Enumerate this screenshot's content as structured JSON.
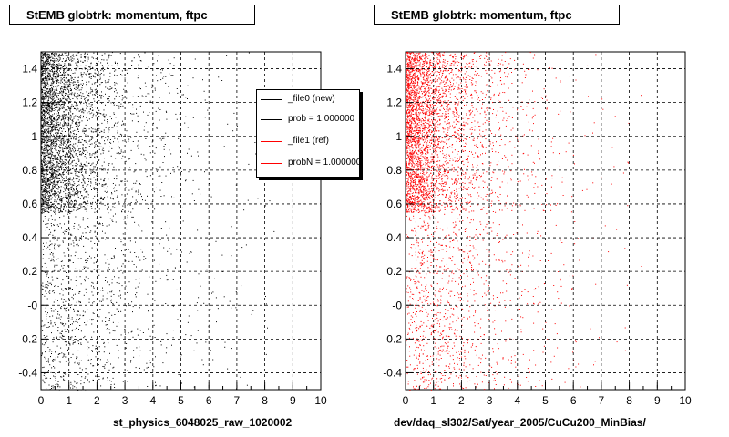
{
  "chart_data": [
    {
      "type": "scatter",
      "title": "StEMB globtrk: momentum, ftpc",
      "xlabel": "st_physics_6048025_raw_1020002",
      "ylabel": "",
      "xlim": [
        0,
        10
      ],
      "ylim": [
        -0.5,
        1.5
      ],
      "x_ticks": [
        "0",
        "1",
        "2",
        "3",
        "4",
        "5",
        "6",
        "7",
        "8",
        "9",
        "10"
      ],
      "y_ticks": [
        "-0.4",
        "-0.2",
        "-0",
        "0.2",
        "0.4",
        "0.6",
        "0.8",
        "1",
        "1.2",
        "1.4"
      ],
      "grid": true,
      "marker_color": "#000000",
      "legend": {
        "placement": "top-right",
        "entries": [
          {
            "label": "_file0 (new)",
            "color": "#000000"
          },
          {
            "label": "prob = 1.000000",
            "color": "#000000"
          },
          {
            "label": "_file1 (ref)",
            "color": "#ff0000"
          },
          {
            "label": "probN = 1.000000",
            "color": "#ff0000"
          }
        ]
      }
    },
    {
      "type": "scatter",
      "title": "StEMB globtrk: momentum, ftpc",
      "xlabel": "dev/daq_sl302/Sat/year_2005/CuCu200_MinBias/",
      "ylabel": "",
      "xlim": [
        0,
        10
      ],
      "ylim": [
        -0.5,
        1.5
      ],
      "x_ticks": [
        "0",
        "1",
        "2",
        "3",
        "4",
        "5",
        "6",
        "7",
        "8",
        "9",
        "10"
      ],
      "y_ticks": [
        "-0.4",
        "-0.2",
        "-0",
        "0.2",
        "0.4",
        "0.6",
        "0.8",
        "1",
        "1.2",
        "1.4"
      ],
      "grid": true,
      "marker_color": "#ff0000"
    }
  ]
}
